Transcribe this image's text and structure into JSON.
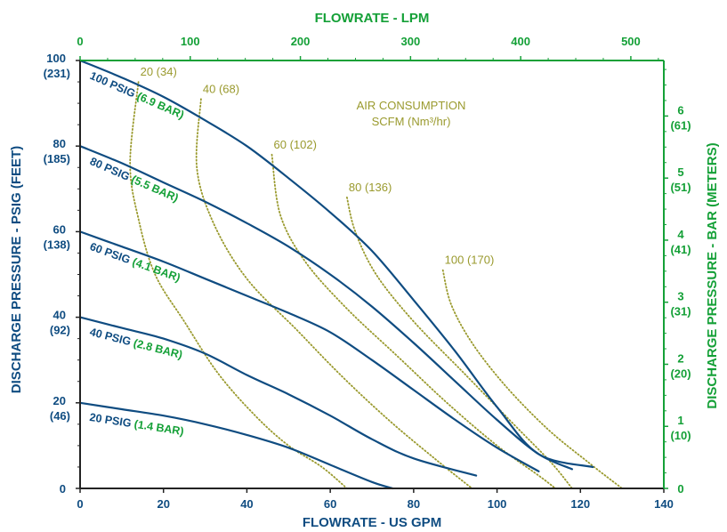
{
  "colors": {
    "blue": "#0f4c81",
    "green": "#14a037",
    "olive": "#9a9a2e",
    "frame": "#222222"
  },
  "chart_data": {
    "type": "line",
    "title": "",
    "xlabel_bottom": "FLOWRATE - US GPM",
    "xlabel_top": "FLOWRATE - LPM",
    "ylabel_left": "DISCHARGE PRESSURE - PSIG (FEET)",
    "ylabel_right": "DISCHARGE PRESSURE - BAR (METERS)",
    "xlim": [
      0,
      140
    ],
    "ylim": [
      0,
      100
    ],
    "x_ticks": [
      "0",
      "20",
      "40",
      "60",
      "80",
      "100",
      "120",
      "140"
    ],
    "x_tick_values": [
      0,
      20,
      40,
      60,
      80,
      100,
      120,
      140
    ],
    "top_ticks": [
      "0",
      "100",
      "200",
      "300",
      "400",
      "500"
    ],
    "top_tick_values": [
      0,
      100,
      200,
      300,
      400,
      500
    ],
    "left_ticks": [
      {
        "value": 0,
        "line1": "0",
        "line2": ""
      },
      {
        "value": 20,
        "line1": "20",
        "line2": "(46)"
      },
      {
        "value": 40,
        "line1": "40",
        "line2": "(92)"
      },
      {
        "value": 60,
        "line1": "60",
        "line2": "(138)"
      },
      {
        "value": 80,
        "line1": "80",
        "line2": "(185)"
      },
      {
        "value": 100,
        "line1": "100",
        "line2": "(231)"
      }
    ],
    "right_ticks": [
      {
        "value": 0,
        "line1": "0",
        "line2": ""
      },
      {
        "value": 1,
        "line1": "1",
        "line2": "(10)"
      },
      {
        "value": 2,
        "line1": "2",
        "line2": "(20)"
      },
      {
        "value": 3,
        "line1": "3",
        "line2": "(31)"
      },
      {
        "value": 4,
        "line1": "4",
        "line2": "(41)"
      },
      {
        "value": 5,
        "line1": "5",
        "line2": "(51)"
      },
      {
        "value": 6,
        "line1": "6",
        "line2": "(61)"
      }
    ],
    "pressure_curves": [
      {
        "psig": "100 PSIG",
        "bar": "(6.9 BAR)",
        "points": [
          [
            0,
            100
          ],
          [
            10,
            96
          ],
          [
            20,
            91.5
          ],
          [
            30,
            86
          ],
          [
            40,
            80
          ],
          [
            50,
            72.5
          ],
          [
            60,
            64.5
          ],
          [
            70,
            55.5
          ],
          [
            80,
            44
          ],
          [
            90,
            32
          ],
          [
            100,
            19
          ],
          [
            110,
            8
          ],
          [
            123,
            5
          ]
        ]
      },
      {
        "psig": "80 PSIG",
        "bar": "(5.5 BAR)",
        "points": [
          [
            0,
            80
          ],
          [
            10,
            76
          ],
          [
            20,
            71.5
          ],
          [
            30,
            67
          ],
          [
            40,
            62
          ],
          [
            50,
            56.5
          ],
          [
            60,
            50
          ],
          [
            70,
            42.5
          ],
          [
            80,
            34
          ],
          [
            90,
            25
          ],
          [
            100,
            16
          ],
          [
            110,
            8
          ],
          [
            118,
            4.5
          ]
        ]
      },
      {
        "psig": "60 PSIG",
        "bar": "(4.1 BAR)",
        "points": [
          [
            0,
            60
          ],
          [
            10,
            56.5
          ],
          [
            20,
            53
          ],
          [
            30,
            49
          ],
          [
            40,
            45
          ],
          [
            50,
            41
          ],
          [
            60,
            36.5
          ],
          [
            70,
            30
          ],
          [
            80,
            23
          ],
          [
            90,
            16
          ],
          [
            100,
            9.5
          ],
          [
            110,
            4
          ]
        ]
      },
      {
        "psig": "40 PSIG",
        "bar": "(2.8 BAR)",
        "points": [
          [
            0,
            40
          ],
          [
            10,
            37.5
          ],
          [
            20,
            35
          ],
          [
            30,
            31.5
          ],
          [
            40,
            26.5
          ],
          [
            50,
            22
          ],
          [
            60,
            17
          ],
          [
            70,
            11.5
          ],
          [
            80,
            7
          ],
          [
            95,
            3
          ]
        ]
      },
      {
        "psig": "20 PSIG",
        "bar": "(1.4 BAR)",
        "points": [
          [
            0,
            20
          ],
          [
            10,
            18.5
          ],
          [
            20,
            17
          ],
          [
            30,
            15
          ],
          [
            40,
            12.5
          ],
          [
            50,
            9.5
          ],
          [
            60,
            5.5
          ],
          [
            70,
            1.5
          ],
          [
            75,
            0
          ]
        ]
      }
    ],
    "air_consumption_title": [
      "AIR CONSUMPTION",
      "SCFM (Nm³/hr)"
    ],
    "air_curves": [
      {
        "label": "20 (34)",
        "points": [
          [
            14,
            95
          ],
          [
            12,
            76
          ],
          [
            14,
            63
          ],
          [
            18,
            50
          ],
          [
            25,
            39
          ],
          [
            33,
            27
          ],
          [
            42,
            17
          ],
          [
            50,
            10
          ],
          [
            58,
            5
          ],
          [
            64,
            0
          ]
        ]
      },
      {
        "label": "40 (68)",
        "points": [
          [
            29,
            91
          ],
          [
            28,
            75
          ],
          [
            32,
            62
          ],
          [
            40,
            49
          ],
          [
            52,
            37
          ],
          [
            63,
            26
          ],
          [
            74,
            16
          ],
          [
            85,
            7
          ],
          [
            94,
            0
          ]
        ]
      },
      {
        "label": "60 (102)",
        "points": [
          [
            46,
            78
          ],
          [
            48,
            64
          ],
          [
            54,
            53
          ],
          [
            64,
            42
          ],
          [
            76,
            31
          ],
          [
            88,
            20
          ],
          [
            100,
            10
          ],
          [
            110,
            3
          ],
          [
            114,
            0
          ]
        ]
      },
      {
        "label": "80 (136)",
        "points": [
          [
            64,
            68
          ],
          [
            66,
            60
          ],
          [
            71,
            50
          ],
          [
            80,
            39
          ],
          [
            92,
            27
          ],
          [
            104,
            15
          ],
          [
            113,
            6
          ],
          [
            118,
            0
          ]
        ]
      },
      {
        "label": "100 (170)",
        "points": [
          [
            87,
            51
          ],
          [
            89,
            43
          ],
          [
            94,
            34
          ],
          [
            102,
            24
          ],
          [
            112,
            14
          ],
          [
            122,
            6
          ],
          [
            130,
            0
          ]
        ]
      }
    ]
  }
}
